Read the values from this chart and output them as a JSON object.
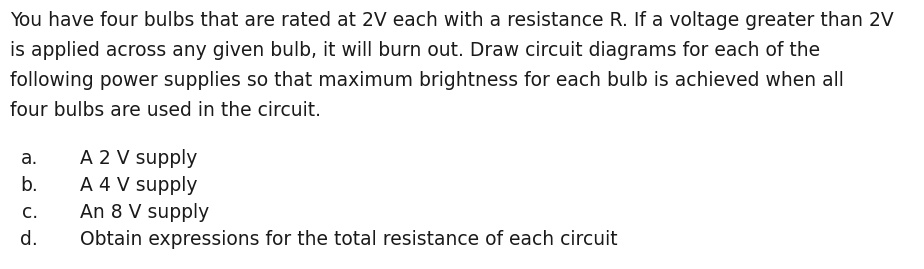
{
  "background_color": "#ffffff",
  "paragraph_lines": [
    "You have four bulbs that are rated at 2V each with a resistance R. If a voltage greater than 2V",
    "is applied across any given bulb, it will burn out. Draw circuit diagrams for each of the",
    "following power supplies so that maximum brightness for each bulb is achieved when all",
    "four bulbs are used in the circuit."
  ],
  "items": [
    {
      "label": "a.",
      "text": "A 2 V supply"
    },
    {
      "label": "b.",
      "text": "A 4 V supply"
    },
    {
      "label": "c.",
      "text": "An 8 V supply"
    },
    {
      "label": "d.",
      "text": "Obtain expressions for the total resistance of each circuit"
    }
  ],
  "para_fontsize": 13.5,
  "item_fontsize": 13.5,
  "text_color": "#1a1a1a",
  "fig_width": 9.24,
  "fig_height": 2.69,
  "dpi": 100
}
